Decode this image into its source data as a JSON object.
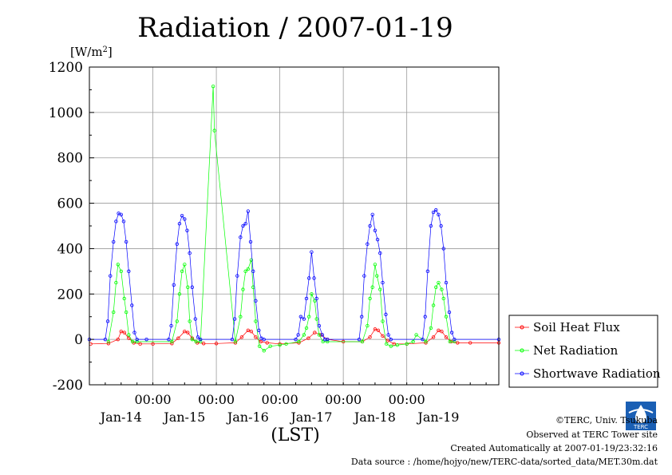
{
  "chart_data": {
    "type": "line",
    "title": "Radiation / 2007-01-19",
    "ylabel": "[W/m",
    "ylabel_sup": "2",
    "ylabel_end": "]",
    "xlabel": "(LST)",
    "ylim": [
      -200,
      1200
    ],
    "yticks": [
      -200,
      0,
      200,
      400,
      600,
      800,
      1000,
      1200
    ],
    "xlim_days": [
      13.0,
      19.45
    ],
    "time_ticks": [
      "00:00",
      "00:00",
      "00:00",
      "00:00",
      "00:00"
    ],
    "time_tick_days": [
      14.0,
      15.0,
      16.0,
      17.0,
      18.0
    ],
    "date_labels": [
      "Jan-14",
      "Jan-15",
      "Jan-16",
      "Jan-17",
      "Jan-18",
      "Jan-19"
    ],
    "date_label_days": [
      13.5,
      14.5,
      15.5,
      16.5,
      17.5,
      18.5
    ],
    "grid": true,
    "legend_position": "right",
    "series": [
      {
        "name": "Soil Heat Flux",
        "color": "#ff0000",
        "x": [
          13.02,
          13.3,
          13.45,
          13.5,
          13.55,
          13.62,
          13.7,
          13.8,
          14.0,
          14.3,
          14.4,
          14.5,
          14.55,
          14.62,
          14.7,
          14.8,
          15.0,
          15.3,
          15.4,
          15.5,
          15.55,
          15.62,
          15.7,
          15.8,
          16.0,
          16.3,
          16.45,
          16.55,
          16.65,
          16.75,
          17.0,
          17.3,
          17.42,
          17.5,
          17.55,
          17.62,
          17.7,
          17.8,
          18.0,
          18.3,
          18.42,
          18.5,
          18.55,
          18.62,
          18.7,
          18.8,
          19.0,
          19.45
        ],
        "y": [
          -20,
          -18,
          0,
          35,
          30,
          5,
          -15,
          -20,
          -20,
          -18,
          5,
          35,
          30,
          5,
          -15,
          -18,
          -18,
          -15,
          10,
          40,
          35,
          10,
          -10,
          -15,
          -20,
          -15,
          5,
          30,
          20,
          0,
          -10,
          -10,
          10,
          45,
          40,
          15,
          -5,
          -20,
          -20,
          -15,
          10,
          40,
          35,
          10,
          -10,
          -15,
          -15,
          -15
        ]
      },
      {
        "name": "Net Radiation",
        "color": "#00ff00",
        "x": [
          13.3,
          13.38,
          13.42,
          13.45,
          13.5,
          13.55,
          13.58,
          13.62,
          13.68,
          13.75,
          14.3,
          14.38,
          14.42,
          14.46,
          14.5,
          14.55,
          14.58,
          14.62,
          14.68,
          14.75,
          14.95,
          14.97,
          15.3,
          15.38,
          15.42,
          15.46,
          15.5,
          15.55,
          15.58,
          15.62,
          15.68,
          15.75,
          15.85,
          16.0,
          16.1,
          16.3,
          16.38,
          16.42,
          16.46,
          16.5,
          16.55,
          16.58,
          16.62,
          16.68,
          16.75,
          17.3,
          17.38,
          17.42,
          17.46,
          17.5,
          17.53,
          17.58,
          17.62,
          17.68,
          17.75,
          17.85,
          18.0,
          18.1,
          18.15,
          18.3,
          18.38,
          18.42,
          18.46,
          18.5,
          18.55,
          18.58,
          18.62,
          18.68,
          18.75
        ],
        "y": [
          -10,
          120,
          250,
          330,
          300,
          180,
          120,
          20,
          -10,
          -10,
          -10,
          80,
          200,
          300,
          330,
          230,
          80,
          0,
          -10,
          -10,
          1115,
          920,
          -10,
          100,
          220,
          300,
          310,
          350,
          230,
          80,
          -30,
          -50,
          -30,
          -25,
          -20,
          -10,
          20,
          50,
          100,
          200,
          170,
          90,
          20,
          -10,
          -10,
          -10,
          60,
          180,
          230,
          330,
          280,
          220,
          80,
          -20,
          -30,
          -25,
          -20,
          -10,
          20,
          -10,
          50,
          150,
          230,
          250,
          220,
          180,
          100,
          -10,
          -10
        ]
      },
      {
        "name": "Shortwave Radiation",
        "color": "#0000ff",
        "x": [
          13.0,
          13.25,
          13.29,
          13.33,
          13.38,
          13.42,
          13.46,
          13.5,
          13.54,
          13.58,
          13.62,
          13.67,
          13.71,
          13.75,
          13.9,
          14.25,
          14.29,
          14.33,
          14.38,
          14.42,
          14.46,
          14.5,
          14.54,
          14.58,
          14.62,
          14.67,
          14.71,
          14.75,
          15.25,
          15.29,
          15.33,
          15.38,
          15.42,
          15.46,
          15.5,
          15.54,
          15.58,
          15.62,
          15.67,
          15.71,
          15.75,
          16.25,
          16.29,
          16.33,
          16.38,
          16.42,
          16.46,
          16.5,
          16.54,
          16.58,
          16.62,
          16.67,
          16.71,
          16.75,
          17.25,
          17.29,
          17.33,
          17.38,
          17.42,
          17.46,
          17.5,
          17.54,
          17.58,
          17.62,
          17.67,
          17.71,
          17.75,
          18.25,
          18.29,
          18.33,
          18.38,
          18.42,
          18.46,
          18.5,
          18.54,
          18.58,
          18.62,
          18.67,
          18.71,
          18.75,
          19.45
        ],
        "y": [
          0,
          0,
          80,
          280,
          430,
          520,
          555,
          550,
          520,
          430,
          300,
          150,
          30,
          0,
          0,
          0,
          60,
          240,
          420,
          510,
          545,
          530,
          480,
          380,
          230,
          90,
          10,
          0,
          0,
          90,
          280,
          450,
          500,
          510,
          565,
          430,
          300,
          170,
          40,
          5,
          0,
          0,
          20,
          100,
          90,
          180,
          270,
          385,
          270,
          180,
          60,
          20,
          0,
          0,
          0,
          100,
          280,
          420,
          500,
          550,
          480,
          440,
          380,
          250,
          110,
          20,
          0,
          0,
          100,
          300,
          500,
          560,
          570,
          550,
          500,
          400,
          250,
          120,
          30,
          0,
          0
        ]
      }
    ]
  },
  "credits": {
    "copyright": "©TERC, Univ. Tsukuba",
    "site": "Observed at TERC Tower site",
    "created": "Created Automatically at 2007-01-19/23:32:16",
    "source": "Data source : /home/hojyo/new/TERC-data/sorted_data/MET.30m.dat"
  },
  "logo": {
    "text": "TERC",
    "color": "#1a5fb4"
  }
}
